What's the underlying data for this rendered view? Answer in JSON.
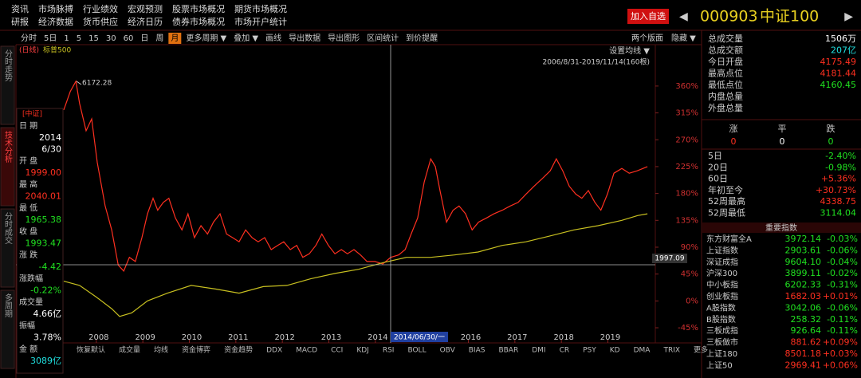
{
  "menu": {
    "row1": [
      "资讯",
      "市场脉搏",
      "行业绩效",
      "宏观预测",
      "股票市场概况",
      "期货市场概况"
    ],
    "row2": [
      "研报",
      "经济数据",
      "货币供应",
      "经济日历",
      "债券市场概况",
      "市场开户统计"
    ]
  },
  "add_button": "加入自选",
  "code": "000903",
  "name": "中证100",
  "toolbar": {
    "left": [
      "分时",
      "5日",
      "1",
      "5",
      "15",
      "30",
      "60",
      "日",
      "周",
      "月",
      "更多周期 ▼",
      "叠加 ▼",
      "画线",
      "导出数据",
      "导出图形",
      "区间统计",
      "到价提醒"
    ],
    "active": 9,
    "right": [
      "两个版面",
      "隐藏 ▼"
    ]
  },
  "side_tabs": [
    "分时走势",
    "技术分析",
    "分时成交",
    "多周期"
  ],
  "chart_data": {
    "type": "line",
    "period_label": "(日线)",
    "settings_label": "设置均线 ▼",
    "range_label": "2006/8/31-2019/11/14(160根)",
    "peak_label": "6172.28",
    "crosshair_date": "2014/06/30/一",
    "crosshair_value": "1997.09",
    "xlim": [
      2007.3,
      2019.9
    ],
    "xticks": [
      2008,
      2009,
      2010,
      2011,
      2012,
      2013,
      2014,
      2016,
      2017,
      2018,
      2019
    ],
    "ylim": [
      -57,
      424
    ],
    "yticks": [
      {
        "value": 360,
        "label": "360%"
      },
      {
        "value": 315,
        "label": "315%"
      },
      {
        "value": 270,
        "label": "270%"
      },
      {
        "value": 225,
        "label": "225%"
      },
      {
        "value": 180,
        "label": "180%"
      },
      {
        "value": 135,
        "label": "135%"
      },
      {
        "value": 90,
        "label": "90%"
      },
      {
        "value": 45,
        "label": "45%"
      },
      {
        "value": 0,
        "label": "0%"
      },
      {
        "value": -45,
        "label": "-45%"
      }
    ],
    "series": [
      {
        "color": "#ff3020",
        "x": [
          2007.3,
          2007.44,
          2007.56,
          2007.64,
          2007.78,
          2007.9,
          2008.02,
          2008.19,
          2008.33,
          2008.47,
          2008.59,
          2008.71,
          2008.84,
          2008.98,
          2009.1,
          2009.22,
          2009.32,
          2009.44,
          2009.56,
          2009.7,
          2009.84,
          2009.97,
          2010.11,
          2010.25,
          2010.39,
          2010.52,
          2010.66,
          2010.8,
          2010.93,
          2011.07,
          2011.21,
          2011.35,
          2011.48,
          2011.62,
          2011.76,
          2011.9,
          2012.03,
          2012.17,
          2012.31,
          2012.44,
          2012.58,
          2012.72,
          2012.85,
          2012.99,
          2013.13,
          2013.27,
          2013.4,
          2013.54,
          2013.68,
          2013.82,
          2013.99,
          2014.16,
          2014.33,
          2014.5,
          2014.64,
          2014.77,
          2014.91,
          2015.05,
          2015.19,
          2015.29,
          2015.39,
          2015.53,
          2015.67,
          2015.8,
          2015.94,
          2016.08,
          2016.22,
          2016.39,
          2016.55,
          2016.73,
          2016.9,
          2017.07,
          2017.24,
          2017.41,
          2017.59,
          2017.76,
          2017.89,
          2018.03,
          2018.17,
          2018.31,
          2018.44,
          2018.58,
          2018.72,
          2018.85,
          2018.99,
          2019.13,
          2019.3,
          2019.46,
          2019.63,
          2019.85
        ],
        "values": [
          320,
          351,
          368,
          331,
          285,
          305,
          232,
          159,
          119,
          60,
          50,
          73,
          66,
          106,
          146,
          172,
          152,
          165,
          172,
          139,
          119,
          146,
          106,
          126,
          112,
          132,
          146,
          112,
          106,
          99,
          119,
          106,
          99,
          106,
          86,
          93,
          99,
          86,
          93,
          73,
          79,
          93,
          112,
          93,
          79,
          86,
          79,
          86,
          77,
          66,
          66,
          62,
          73,
          77,
          86,
          112,
          139,
          199,
          238,
          225,
          185,
          132,
          152,
          159,
          146,
          119,
          132,
          139,
          146,
          152,
          159,
          165,
          179,
          192,
          205,
          218,
          238,
          218,
          192,
          179,
          172,
          185,
          165,
          152,
          179,
          214,
          222,
          214,
          218,
          225
        ]
      },
      {
        "name": "标普500",
        "color": "#c8c020",
        "x": [
          2007.3,
          2007.64,
          2007.99,
          2008.33,
          2008.5,
          2008.76,
          2009.1,
          2009.53,
          2010.04,
          2010.56,
          2011.07,
          2011.59,
          2012.1,
          2012.61,
          2013.13,
          2013.64,
          2014.16,
          2014.67,
          2015.19,
          2015.7,
          2016.21,
          2016.73,
          2017.24,
          2017.76,
          2018.27,
          2018.79,
          2019.3,
          2019.64,
          2019.85
        ],
        "values": [
          33,
          26,
          7,
          -13,
          -26,
          -20,
          0,
          13,
          26,
          20,
          13,
          24,
          26,
          37,
          46,
          53,
          64,
          73,
          73,
          77,
          82,
          93,
          99,
          109,
          119,
          126,
          135,
          143,
          146
        ]
      }
    ]
  },
  "info_panel": {
    "tag": "[中证]",
    "rows": [
      {
        "label": "日 期",
        "values": [
          "2014",
          "6/30"
        ],
        "color": "#ffffff"
      },
      {
        "label": "开 盘",
        "values": [
          "1999.00"
        ],
        "color": "#ff3020"
      },
      {
        "label": "最 高",
        "values": [
          "2040.01"
        ],
        "color": "#ff3020"
      },
      {
        "label": "最 低",
        "values": [
          "1965.38"
        ],
        "color": "#20e020"
      },
      {
        "label": "收 盘",
        "values": [
          "1993.47"
        ],
        "color": "#20e020"
      },
      {
        "label": "涨 跌",
        "values": [
          "-4.42"
        ],
        "color": "#20e020"
      },
      {
        "label": "涨跌幅",
        "values": [
          "-0.22%"
        ],
        "color": "#20e020"
      },
      {
        "label": "成交量",
        "values": [
          "4.66亿"
        ],
        "color": "#ffffff"
      },
      {
        "label": "振幅",
        "values": [
          "3.78%"
        ],
        "color": "#ffffff"
      },
      {
        "label": "金 额",
        "values": [
          "3089亿"
        ],
        "color": "#20e0e0"
      }
    ]
  },
  "quote": {
    "stats": [
      {
        "label": "总成交量",
        "value": "1506万",
        "color": "#ffffff"
      },
      {
        "label": "总成交额",
        "value": "207亿",
        "color": "#20e0e0"
      },
      {
        "label": "今日开盘",
        "value": "4175.49",
        "color": "#ff3020"
      },
      {
        "label": "最高点位",
        "value": "4181.44",
        "color": "#ff3020"
      },
      {
        "label": "最低点位",
        "value": "4160.45",
        "color": "#20e020"
      },
      {
        "label": "内盘总量",
        "value": "",
        "color": "#ffffff"
      },
      {
        "label": "外盘总量",
        "value": "",
        "color": "#ffffff"
      }
    ],
    "count_headers": [
      "涨",
      "平",
      "跌"
    ],
    "counts": [
      0,
      0,
      0
    ],
    "count_colors": [
      "#ff3020",
      "#ffffff",
      "#20e020"
    ],
    "perf": [
      {
        "label": "5日",
        "value": "-2.40%",
        "color": "#20e020"
      },
      {
        "label": "20日",
        "value": "-0.98%",
        "color": "#20e020"
      },
      {
        "label": "60日",
        "value": "+5.36%",
        "color": "#ff3020"
      },
      {
        "label": "年初至今",
        "value": "+30.73%",
        "color": "#ff3020"
      },
      {
        "label": "52周最高",
        "value": "4338.75",
        "color": "#ff3020"
      },
      {
        "label": "52周最低",
        "value": "3114.04",
        "color": "#20e020"
      }
    ]
  },
  "indices": {
    "header": "重要指数",
    "rows": [
      {
        "name": "东方财富全A",
        "price": "3972.14",
        "change": "-0.03%",
        "color": "#20e020"
      },
      {
        "name": "上证指数",
        "price": "2903.61",
        "change": "-0.06%",
        "color": "#20e020"
      },
      {
        "name": "深证成指",
        "price": "9604.10",
        "change": "-0.04%",
        "color": "#20e020"
      },
      {
        "name": "沪深300",
        "price": "3899.11",
        "change": "-0.02%",
        "color": "#20e020"
      },
      {
        "name": "中小板指",
        "price": "6202.33",
        "change": "-0.31%",
        "color": "#20e020"
      },
      {
        "name": "创业板指",
        "price": "1682.03",
        "change": "+0.01%",
        "color": "#ff3020"
      },
      {
        "name": "A股指数",
        "price": "3042.06",
        "change": "-0.06%",
        "color": "#20e020"
      },
      {
        "name": "B股指数",
        "price": "258.32",
        "change": "-0.11%",
        "color": "#20e020"
      },
      {
        "name": "三板成指",
        "price": "926.64",
        "change": "-0.11%",
        "color": "#20e020"
      },
      {
        "name": "三板做市",
        "price": "881.62",
        "change": "+0.09%",
        "color": "#ff3020"
      },
      {
        "name": "上证180",
        "price": "8501.18",
        "change": "+0.03%",
        "color": "#ff3020"
      },
      {
        "name": "上证50",
        "price": "2969.41",
        "change": "+0.06%",
        "color": "#ff3020"
      }
    ]
  },
  "bottom_tabs": [
    "恢复默认",
    "成交量",
    "均线",
    "资金博弈",
    "资金趋势",
    "DDX",
    "MACD",
    "CCI",
    "KDJ",
    "RSI",
    "BOLL",
    "OBV",
    "BIAS",
    "BBAR",
    "DMI",
    "CR",
    "PSY",
    "KD",
    "DMA",
    "TRIX",
    "更多"
  ]
}
